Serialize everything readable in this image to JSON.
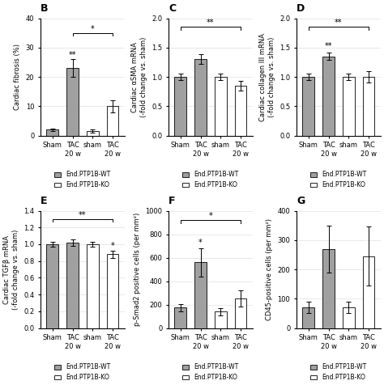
{
  "chart_data": [
    {
      "type": "bar",
      "title": "B",
      "ylabel": "Cardiac fibrosis (%)",
      "categories": [
        "Sham",
        "TAC\n20 w",
        "sham",
        "TAC\n20 w"
      ],
      "series": [
        {
          "name": "End.PTP1B-WT",
          "color": "#a0a0a0",
          "values": [
            2.0,
            23.0,
            null,
            null
          ],
          "errors": [
            0.5,
            3.0,
            null,
            null
          ]
        },
        {
          "name": "End.PTP1B-KO",
          "color": "#ffffff",
          "values": [
            null,
            null,
            1.5,
            10.0
          ],
          "errors": [
            null,
            null,
            0.5,
            2.0
          ]
        }
      ],
      "ylim": [
        0,
        40
      ],
      "yticks": [
        0,
        10,
        20,
        30,
        40
      ],
      "grid": "y",
      "legend": "bottom",
      "annotations": [
        {
          "text": "*",
          "x1": 1,
          "x2": 3,
          "y": 35
        },
        {
          "text": "**",
          "x": 1,
          "y": 26
        }
      ]
    },
    {
      "type": "bar",
      "title": "C",
      "ylabel": "Cardiac αSMA mRNA\n(-fold change vs. sham)",
      "categories": [
        "Sham",
        "TAC\n20 w",
        "sham",
        "TAC\n20 w"
      ],
      "series": [
        {
          "name": "End.PTP1B-WT",
          "color": "#a0a0a0",
          "values": [
            1.0,
            1.3,
            null,
            null
          ],
          "errors": [
            0.05,
            0.08,
            null,
            null
          ]
        },
        {
          "name": "End.PTP1B-KO",
          "color": "#ffffff",
          "values": [
            null,
            null,
            1.0,
            0.85
          ],
          "errors": [
            null,
            null,
            0.05,
            0.08
          ]
        }
      ],
      "ylim": [
        0.0,
        2.0
      ],
      "yticks": [
        0.0,
        0.5,
        1.0,
        1.5,
        2.0
      ],
      "grid": "y",
      "legend": "bottom",
      "annotations": [
        {
          "text": "**",
          "x1": 0,
          "x2": 3,
          "y": 1.85
        }
      ]
    },
    {
      "type": "bar",
      "title": "D",
      "ylabel": "Cardiac collagen III mRNA\n(-fold change vs. sham)",
      "categories": [
        "Sham",
        "TAC\n20 w",
        "sham",
        "TAC\n20 w"
      ],
      "series": [
        {
          "name": "End.PTP1B-WT",
          "color": "#a0a0a0",
          "values": [
            1.0,
            1.35,
            null,
            null
          ],
          "errors": [
            0.05,
            0.06,
            null,
            null
          ]
        },
        {
          "name": "End.PTP1B-KO",
          "color": "#ffffff",
          "values": [
            null,
            null,
            1.0,
            1.0
          ],
          "errors": [
            null,
            null,
            0.05,
            0.1
          ]
        }
      ],
      "ylim": [
        0.0,
        2.0
      ],
      "yticks": [
        0.0,
        0.5,
        1.0,
        1.5,
        2.0
      ],
      "grid": "y",
      "legend": "bottom",
      "annotations": [
        {
          "text": "**",
          "x1": 0,
          "x2": 3,
          "y": 1.85
        },
        {
          "text": "**",
          "x": 1,
          "y": 1.45
        }
      ]
    },
    {
      "type": "bar",
      "title": "E",
      "ylabel": "Cardiac TGFβ mRNA\n(-fold change vs. sham)",
      "categories": [
        "Sham",
        "TAC\n20 w",
        "sham",
        "TAC\n20 w"
      ],
      "series": [
        {
          "name": "End.PTP1B-WT",
          "color": "#a0a0a0",
          "values": [
            1.0,
            1.02,
            null,
            null
          ],
          "errors": [
            0.03,
            0.04,
            null,
            null
          ]
        },
        {
          "name": "End.PTP1B-KO",
          "color": "#ffffff",
          "values": [
            null,
            null,
            1.0,
            0.88
          ],
          "errors": [
            null,
            null,
            0.03,
            0.04
          ]
        }
      ],
      "ylim": [
        0.0,
        1.4
      ],
      "yticks": [
        0.0,
        0.2,
        0.4,
        0.6,
        0.8,
        1.0,
        1.2,
        1.4
      ],
      "grid": "y",
      "legend": "bottom",
      "annotations": [
        {
          "text": "**",
          "x1": 0,
          "x2": 3,
          "y": 1.3
        },
        {
          "text": "*",
          "x": 3,
          "y": 0.93
        }
      ]
    },
    {
      "type": "bar",
      "title": "F",
      "ylabel": "p-Smad2 positive cells (per mm²)",
      "categories": [
        "Sham",
        "TAC\n20 w",
        "sham",
        "TAC\n20 w"
      ],
      "series": [
        {
          "name": "End.PTP1B-WT",
          "color": "#a0a0a0",
          "values": [
            175,
            560,
            null,
            null
          ],
          "errors": [
            30,
            120,
            null,
            null
          ]
        },
        {
          "name": "End.PTP1B-KO",
          "color": "#ffffff",
          "values": [
            null,
            null,
            140,
            250
          ],
          "errors": [
            null,
            null,
            30,
            70
          ]
        }
      ],
      "ylim": [
        0,
        1000
      ],
      "yticks": [
        0,
        200,
        400,
        600,
        800,
        1000
      ],
      "grid": "y",
      "legend": "bottom",
      "annotations": [
        {
          "text": "*",
          "x1": 0,
          "x2": 3,
          "y": 920
        },
        {
          "text": "*",
          "x": 1,
          "y": 690
        }
      ]
    },
    {
      "type": "bar",
      "title": "G",
      "ylabel": "CD45-positive cells (per mm²)",
      "categories": [
        "Sham",
        "TAC\n20 w",
        "sham",
        "TAC\n20 w"
      ],
      "series": [
        {
          "name": "End.PTP1B-WT",
          "color": "#a0a0a0",
          "values": [
            70,
            270,
            null,
            null
          ],
          "errors": [
            20,
            80,
            null,
            null
          ]
        },
        {
          "name": "End.PTP1B-KO",
          "color": "#ffffff",
          "values": [
            null,
            null,
            70,
            245
          ],
          "errors": [
            null,
            null,
            20,
            100
          ]
        }
      ],
      "ylim": [
        0,
        400
      ],
      "yticks": [
        0,
        100,
        200,
        300,
        400
      ],
      "grid": "y",
      "legend": "bottom"
    }
  ]
}
